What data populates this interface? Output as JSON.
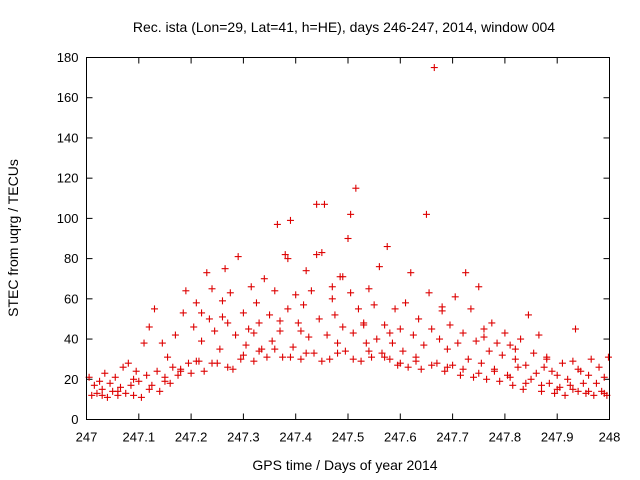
{
  "chart_data": {
    "type": "scatter",
    "title": "Rec. ista (Lon=29, Lat=41, h=HE), days 246-247, 2014, window 004",
    "xlabel": "GPS time / Days of year 2014",
    "ylabel": "STEC from uqrg / TECUs",
    "xlim": [
      247,
      248
    ],
    "ylim": [
      0,
      180
    ],
    "xticks": [
      "247",
      "247.1",
      "247.2",
      "247.3",
      "247.4",
      "247.5",
      "247.6",
      "247.7",
      "247.8",
      "247.9",
      "248"
    ],
    "xtick_values": [
      247,
      247.1,
      247.2,
      247.3,
      247.4,
      247.5,
      247.6,
      247.7,
      247.8,
      247.9,
      248
    ],
    "yticks": [
      "0",
      "20",
      "40",
      "60",
      "80",
      "100",
      "120",
      "140",
      "160",
      "180"
    ],
    "ytick_values": [
      0,
      20,
      40,
      60,
      80,
      100,
      120,
      140,
      160,
      180
    ],
    "marker": "+",
    "marker_color": "#dd0000",
    "series": [
      {
        "name": "STEC",
        "points": [
          [
            247.005,
            21
          ],
          [
            247.01,
            12
          ],
          [
            247.015,
            17
          ],
          [
            247.02,
            13
          ],
          [
            247.025,
            19
          ],
          [
            247.03,
            12
          ],
          [
            247.035,
            23
          ],
          [
            247.04,
            11
          ],
          [
            247.045,
            18
          ],
          [
            247.05,
            14
          ],
          [
            247.055,
            21
          ],
          [
            247.06,
            12
          ],
          [
            247.065,
            16
          ],
          [
            247.07,
            26
          ],
          [
            247.075,
            13
          ],
          [
            247.08,
            28
          ],
          [
            247.085,
            17
          ],
          [
            247.09,
            12
          ],
          [
            247.095,
            24
          ],
          [
            247.1,
            19
          ],
          [
            247.105,
            11
          ],
          [
            247.11,
            38
          ],
          [
            247.115,
            22
          ],
          [
            247.12,
            46
          ],
          [
            247.125,
            17
          ],
          [
            247.13,
            55
          ],
          [
            247.135,
            24
          ],
          [
            247.14,
            14
          ],
          [
            247.145,
            38
          ],
          [
            247.15,
            21
          ],
          [
            247.155,
            31
          ],
          [
            247.16,
            18
          ],
          [
            247.165,
            26
          ],
          [
            247.17,
            42
          ],
          [
            247.175,
            22
          ],
          [
            247.18,
            25
          ],
          [
            247.185,
            53
          ],
          [
            247.19,
            64
          ],
          [
            247.195,
            28
          ],
          [
            247.2,
            23
          ],
          [
            247.205,
            46
          ],
          [
            247.21,
            58
          ],
          [
            247.215,
            29
          ],
          [
            247.22,
            39
          ],
          [
            247.225,
            24
          ],
          [
            247.23,
            73
          ],
          [
            247.235,
            50
          ],
          [
            247.24,
            65
          ],
          [
            247.245,
            44
          ],
          [
            247.25,
            28
          ],
          [
            247.255,
            35
          ],
          [
            247.26,
            59
          ],
          [
            247.265,
            75
          ],
          [
            247.27,
            48
          ],
          [
            247.275,
            63
          ],
          [
            247.28,
            25
          ],
          [
            247.285,
            42
          ],
          [
            247.29,
            81
          ],
          [
            247.295,
            30
          ],
          [
            247.3,
            53
          ],
          [
            247.305,
            37
          ],
          [
            247.31,
            45
          ],
          [
            247.315,
            66
          ],
          [
            247.32,
            29
          ],
          [
            247.325,
            58
          ],
          [
            247.33,
            48
          ],
          [
            247.335,
            35
          ],
          [
            247.34,
            70
          ],
          [
            247.345,
            31
          ],
          [
            247.35,
            52
          ],
          [
            247.355,
            39
          ],
          [
            247.36,
            64
          ],
          [
            247.365,
            97
          ],
          [
            247.37,
            44
          ],
          [
            247.375,
            31
          ],
          [
            247.38,
            82
          ],
          [
            247.385,
            55
          ],
          [
            247.39,
            99
          ],
          [
            247.395,
            36
          ],
          [
            247.4,
            62
          ],
          [
            247.405,
            48
          ],
          [
            247.41,
            30
          ],
          [
            247.415,
            57
          ],
          [
            247.42,
            74
          ],
          [
            247.425,
            41
          ],
          [
            247.43,
            64
          ],
          [
            247.435,
            33
          ],
          [
            247.44,
            107
          ],
          [
            247.445,
            50
          ],
          [
            247.45,
            83
          ],
          [
            247.455,
            107
          ],
          [
            247.46,
            42
          ],
          [
            247.465,
            30
          ],
          [
            247.47,
            66
          ],
          [
            247.475,
            52
          ],
          [
            247.48,
            38
          ],
          [
            247.485,
            71
          ],
          [
            247.49,
            46
          ],
          [
            247.495,
            34
          ],
          [
            247.5,
            90
          ],
          [
            247.505,
            63
          ],
          [
            247.51,
            43
          ],
          [
            247.515,
            115
          ],
          [
            247.52,
            55
          ],
          [
            247.525,
            29
          ],
          [
            247.53,
            47
          ],
          [
            247.535,
            38
          ],
          [
            247.54,
            65
          ],
          [
            247.545,
            31
          ],
          [
            247.55,
            57
          ],
          [
            247.555,
            40
          ],
          [
            247.56,
            76
          ],
          [
            247.565,
            33
          ],
          [
            247.57,
            47
          ],
          [
            247.575,
            86
          ],
          [
            247.58,
            30
          ],
          [
            247.585,
            38
          ],
          [
            247.59,
            55
          ],
          [
            247.595,
            27
          ],
          [
            247.6,
            45
          ],
          [
            247.605,
            34
          ],
          [
            247.61,
            58
          ],
          [
            247.615,
            26
          ],
          [
            247.62,
            73
          ],
          [
            247.625,
            42
          ],
          [
            247.63,
            31
          ],
          [
            247.635,
            50
          ],
          [
            247.64,
            25
          ],
          [
            247.645,
            37
          ],
          [
            247.65,
            102
          ],
          [
            247.655,
            63
          ],
          [
            247.66,
            45
          ],
          [
            247.665,
            175
          ],
          [
            247.67,
            28
          ],
          [
            247.675,
            40
          ],
          [
            247.68,
            56
          ],
          [
            247.685,
            24
          ],
          [
            247.69,
            35
          ],
          [
            247.695,
            47
          ],
          [
            247.7,
            27
          ],
          [
            247.705,
            61
          ],
          [
            247.71,
            38
          ],
          [
            247.715,
            22
          ],
          [
            247.72,
            43
          ],
          [
            247.725,
            73
          ],
          [
            247.73,
            30
          ],
          [
            247.735,
            55
          ],
          [
            247.74,
            21
          ],
          [
            247.745,
            39
          ],
          [
            247.75,
            66
          ],
          [
            247.755,
            28
          ],
          [
            247.76,
            45
          ],
          [
            247.765,
            20
          ],
          [
            247.77,
            34
          ],
          [
            247.775,
            48
          ],
          [
            247.78,
            25
          ],
          [
            247.785,
            38
          ],
          [
            247.79,
            19
          ],
          [
            247.795,
            32
          ],
          [
            247.8,
            43
          ],
          [
            247.805,
            22
          ],
          [
            247.81,
            37
          ],
          [
            247.815,
            17
          ],
          [
            247.82,
            30
          ],
          [
            247.825,
            26
          ],
          [
            247.83,
            40
          ],
          [
            247.835,
            15
          ],
          [
            247.84,
            27
          ],
          [
            247.845,
            52
          ],
          [
            247.85,
            20
          ],
          [
            247.855,
            33
          ],
          [
            247.86,
            23
          ],
          [
            247.865,
            42
          ],
          [
            247.87,
            14
          ],
          [
            247.875,
            26
          ],
          [
            247.88,
            31
          ],
          [
            247.885,
            18
          ],
          [
            247.89,
            24
          ],
          [
            247.895,
            13
          ],
          [
            247.9,
            22
          ],
          [
            247.905,
            16
          ],
          [
            247.91,
            28
          ],
          [
            247.915,
            12
          ],
          [
            247.92,
            20
          ],
          [
            247.925,
            17
          ],
          [
            247.93,
            29
          ],
          [
            247.935,
            45
          ],
          [
            247.94,
            14
          ],
          [
            247.945,
            24
          ],
          [
            247.95,
            18
          ],
          [
            247.955,
            13
          ],
          [
            247.96,
            22
          ],
          [
            247.965,
            30
          ],
          [
            247.97,
            12
          ],
          [
            247.975,
            18
          ],
          [
            247.98,
            26
          ],
          [
            247.985,
            14
          ],
          [
            247.99,
            21
          ],
          [
            247.995,
            12
          ],
          [
            247.998,
            31
          ],
          [
            247.03,
            15
          ],
          [
            247.06,
            14
          ],
          [
            247.09,
            20
          ],
          [
            247.12,
            15
          ],
          [
            247.15,
            19
          ],
          [
            247.18,
            24
          ],
          [
            247.21,
            29
          ],
          [
            247.24,
            28
          ],
          [
            247.27,
            26
          ],
          [
            247.3,
            32
          ],
          [
            247.33,
            34
          ],
          [
            247.36,
            35
          ],
          [
            247.39,
            31
          ],
          [
            247.42,
            33
          ],
          [
            247.45,
            29
          ],
          [
            247.48,
            33
          ],
          [
            247.51,
            30
          ],
          [
            247.54,
            34
          ],
          [
            247.57,
            31
          ],
          [
            247.6,
            28
          ],
          [
            247.63,
            29
          ],
          [
            247.66,
            27
          ],
          [
            247.69,
            26
          ],
          [
            247.72,
            25
          ],
          [
            247.75,
            23
          ],
          [
            247.78,
            24
          ],
          [
            247.81,
            21
          ],
          [
            247.84,
            18
          ],
          [
            247.87,
            17
          ],
          [
            247.9,
            15
          ],
          [
            247.93,
            15
          ],
          [
            247.96,
            14
          ],
          [
            247.99,
            13
          ],
          [
            247.22,
            53
          ],
          [
            247.26,
            51
          ],
          [
            247.32,
            43
          ],
          [
            247.37,
            49
          ],
          [
            247.41,
            44
          ],
          [
            247.47,
            60
          ],
          [
            247.53,
            48
          ],
          [
            247.58,
            43
          ],
          [
            247.68,
            54
          ],
          [
            247.76,
            41
          ],
          [
            247.82,
            35
          ],
          [
            247.88,
            30
          ],
          [
            247.94,
            25
          ],
          [
            247.385,
            80
          ],
          [
            247.505,
            102
          ],
          [
            247.44,
            82
          ],
          [
            247.49,
            71
          ]
        ]
      }
    ]
  }
}
